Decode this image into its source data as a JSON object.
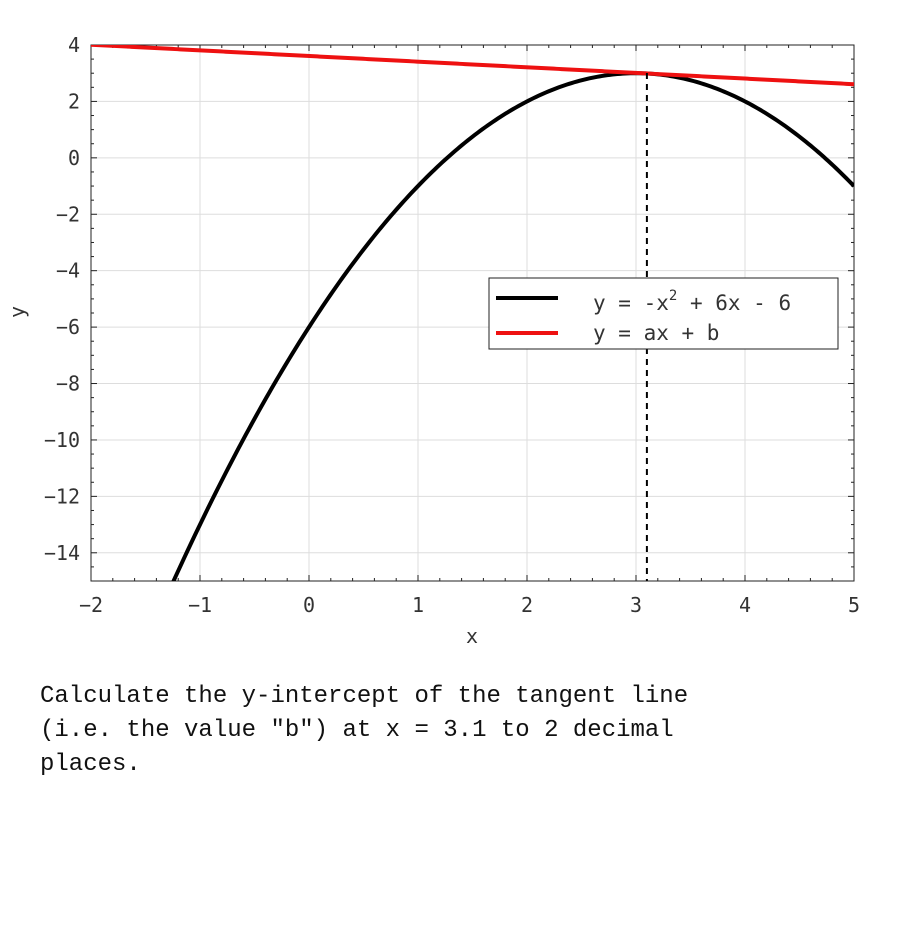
{
  "chart_data": {
    "type": "line",
    "xlabel": "x",
    "ylabel": "y",
    "xlim": [
      -2,
      5
    ],
    "ylim": [
      -15,
      4
    ],
    "xticks": [
      -2,
      -1,
      0,
      1,
      2,
      3,
      4,
      5
    ],
    "yticks": [
      4,
      2,
      0,
      -2,
      -4,
      -6,
      -8,
      -10,
      -12,
      -14
    ],
    "grid": true,
    "legend_position": "center-right",
    "series": [
      {
        "name": "y = -x^2 + 6x - 6",
        "legend_base": "y = -x",
        "legend_sup": "2",
        "legend_rest": " + 6x - 6",
        "color": "#000000",
        "kind": "quadratic",
        "coefficients": [
          -1,
          6,
          -6
        ]
      },
      {
        "name": "y = ax + b",
        "legend_base": "y = ax + b",
        "color": "#ee1111",
        "kind": "linear",
        "slope": -0.2,
        "intercept": 3.61
      }
    ],
    "vertical_marker": {
      "x": 3.1,
      "style": "dashed",
      "color": "#000000"
    }
  },
  "question": "Calculate the y-intercept of the tangent line\n(i.e. the value \"b\") at x = 3.1 to 2 decimal\nplaces."
}
